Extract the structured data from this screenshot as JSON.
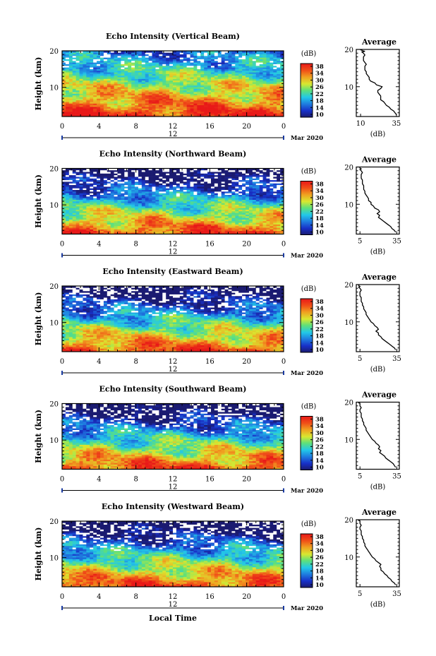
{
  "chart_data": [
    {
      "type": "heatmap",
      "title": "Echo Intensity (Vertical Beam)",
      "ylabel": "Height (km)",
      "x_ticks": [
        "0",
        "4",
        "8",
        "12",
        "16",
        "20",
        "0"
      ],
      "y_ticks": [
        "20",
        "10"
      ],
      "xlim": [
        0,
        24
      ],
      "ylim": [
        2,
        20
      ],
      "date_marker": "12",
      "date_label": "Mar 2020",
      "colorbar": {
        "unit": "(dB)",
        "ticks": [
          "38",
          "34",
          "30",
          "26",
          "22",
          "18",
          "14",
          "10"
        ],
        "range": [
          10,
          38
        ]
      },
      "average_profile": {
        "title": "Average",
        "xlabel": "(dB)",
        "x_ticks": [
          "10",
          "35"
        ],
        "y_ticks": [
          "20",
          "10"
        ],
        "xlim": [
          7,
          37
        ],
        "values": [
          35,
          34,
          33,
          31,
          30,
          28,
          27,
          26,
          24,
          24,
          24,
          23,
          22,
          22,
          24,
          25,
          21,
          20,
          17,
          16,
          16,
          15,
          14,
          14,
          13,
          13,
          13,
          14,
          13,
          12,
          12,
          12,
          13,
          12,
          11,
          13,
          11,
          11,
          10,
          10
        ],
        "heights": [
          2.5,
          3.0,
          3.5,
          4.0,
          4.5,
          5.0,
          5.5,
          6.0,
          6.5,
          7.0,
          7.5,
          8.0,
          8.5,
          9.0,
          9.5,
          10.0,
          10.5,
          11.0,
          11.5,
          12.0,
          12.5,
          13.0,
          13.5,
          14.0,
          14.5,
          15.0,
          15.5,
          16.0,
          16.5,
          17.0,
          17.5,
          18.0,
          18.5,
          19.0,
          19.3,
          19.5,
          19.7,
          19.8,
          19.9,
          20.0
        ]
      }
    },
    {
      "type": "heatmap",
      "title": "Echo Intensity (Northward Beam)",
      "ylabel": "Height (km)",
      "x_ticks": [
        "0",
        "4",
        "8",
        "12",
        "16",
        "20",
        "0"
      ],
      "y_ticks": [
        "20",
        "10"
      ],
      "xlim": [
        0,
        24
      ],
      "ylim": [
        2,
        20
      ],
      "date_marker": "12",
      "date_label": "Mar 2020",
      "colorbar": {
        "unit": "(dB)",
        "ticks": [
          "38",
          "34",
          "30",
          "26",
          "22",
          "18",
          "14",
          "10"
        ],
        "range": [
          10,
          38
        ]
      },
      "average_profile": {
        "title": "Average",
        "xlabel": "(dB)",
        "x_ticks": [
          "5",
          "35"
        ],
        "y_ticks": [
          "20",
          "10"
        ],
        "xlim": [
          2,
          37
        ],
        "values": [
          34,
          33,
          31,
          30,
          28,
          26,
          24,
          22,
          20,
          21,
          19,
          21,
          20,
          17,
          16,
          14,
          14,
          12,
          12,
          11,
          10,
          9,
          9,
          8,
          8,
          8,
          7,
          7,
          7,
          6,
          6,
          6,
          7,
          6,
          5,
          6,
          5,
          5,
          5,
          5
        ],
        "heights": [
          2.5,
          3.0,
          3.5,
          4.0,
          4.5,
          5.0,
          5.5,
          6.0,
          6.5,
          7.0,
          7.5,
          8.0,
          8.5,
          9.0,
          9.5,
          10.0,
          10.5,
          11.0,
          11.5,
          12.0,
          12.5,
          13.0,
          13.5,
          14.0,
          14.5,
          15.0,
          15.5,
          16.0,
          16.5,
          17.0,
          17.5,
          18.0,
          18.5,
          19.0,
          19.3,
          19.5,
          19.7,
          19.8,
          19.9,
          20.0
        ]
      }
    },
    {
      "type": "heatmap",
      "title": "Echo Intensity (Eastward Beam)",
      "ylabel": "Height (km)",
      "x_ticks": [
        "0",
        "4",
        "8",
        "12",
        "16",
        "20",
        "0"
      ],
      "y_ticks": [
        "20",
        "10"
      ],
      "xlim": [
        0,
        24
      ],
      "ylim": [
        2,
        20
      ],
      "date_marker": "12",
      "date_label": "Mar 2020",
      "colorbar": {
        "unit": "(dB)",
        "ticks": [
          "38",
          "34",
          "30",
          "26",
          "22",
          "18",
          "14",
          "10"
        ],
        "range": [
          10,
          38
        ]
      },
      "average_profile": {
        "title": "Average",
        "xlabel": "(dB)",
        "x_ticks": [
          "5",
          "35"
        ],
        "y_ticks": [
          "20",
          "10"
        ],
        "xlim": [
          2,
          37
        ],
        "values": [
          34,
          33,
          31,
          29,
          27,
          25,
          23,
          22,
          20,
          20,
          18,
          20,
          19,
          17,
          16,
          14,
          13,
          12,
          11,
          10,
          10,
          9,
          8,
          8,
          7,
          7,
          6,
          6,
          6,
          5,
          5,
          5,
          6,
          5,
          4,
          5,
          4,
          4,
          4,
          4
        ],
        "heights": [
          2.5,
          3.0,
          3.5,
          4.0,
          4.5,
          5.0,
          5.5,
          6.0,
          6.5,
          7.0,
          7.5,
          8.0,
          8.5,
          9.0,
          9.5,
          10.0,
          10.5,
          11.0,
          11.5,
          12.0,
          12.5,
          13.0,
          13.5,
          14.0,
          14.5,
          15.0,
          15.5,
          16.0,
          16.5,
          17.0,
          17.5,
          18.0,
          18.5,
          19.0,
          19.3,
          19.5,
          19.7,
          19.8,
          19.9,
          20.0
        ]
      }
    },
    {
      "type": "heatmap",
      "title": "Echo Intensity (Southward Beam)",
      "ylabel": "Height (km)",
      "x_ticks": [
        "0",
        "4",
        "8",
        "12",
        "16",
        "20",
        "0"
      ],
      "y_ticks": [
        "20",
        "10"
      ],
      "xlim": [
        0,
        24
      ],
      "ylim": [
        2,
        20
      ],
      "date_marker": "12",
      "date_label": "Mar 2020",
      "colorbar": {
        "unit": "(dB)",
        "ticks": [
          "38",
          "34",
          "30",
          "26",
          "22",
          "18",
          "14",
          "10"
        ],
        "range": [
          10,
          38
        ]
      },
      "average_profile": {
        "title": "Average",
        "xlabel": "(dB)",
        "x_ticks": [
          "5",
          "35"
        ],
        "y_ticks": [
          "20",
          "10"
        ],
        "xlim": [
          2,
          37
        ],
        "values": [
          34,
          33,
          32,
          30,
          28,
          26,
          25,
          23,
          21,
          22,
          20,
          21,
          20,
          18,
          17,
          15,
          14,
          13,
          12,
          11,
          10,
          10,
          9,
          8,
          8,
          7,
          7,
          6,
          6,
          6,
          5,
          5,
          6,
          5,
          5,
          5,
          5,
          4,
          4,
          4
        ],
        "heights": [
          2.5,
          3.0,
          3.5,
          4.0,
          4.5,
          5.0,
          5.5,
          6.0,
          6.5,
          7.0,
          7.5,
          8.0,
          8.5,
          9.0,
          9.5,
          10.0,
          10.5,
          11.0,
          11.5,
          12.0,
          12.5,
          13.0,
          13.5,
          14.0,
          14.5,
          15.0,
          15.5,
          16.0,
          16.5,
          17.0,
          17.5,
          18.0,
          18.5,
          19.0,
          19.3,
          19.5,
          19.7,
          19.8,
          19.9,
          20.0
        ]
      }
    },
    {
      "type": "heatmap",
      "title": "Echo Intensity (Westward Beam)",
      "ylabel": "Height (km)",
      "x_ticks": [
        "0",
        "4",
        "8",
        "12",
        "16",
        "20",
        "0"
      ],
      "y_ticks": [
        "20",
        "10"
      ],
      "xlim": [
        0,
        24
      ],
      "ylim": [
        2,
        20
      ],
      "date_marker": "12",
      "date_label": "Mar 2020",
      "colorbar": {
        "unit": "(dB)",
        "ticks": [
          "38",
          "34",
          "30",
          "26",
          "22",
          "18",
          "14",
          "10"
        ],
        "range": [
          10,
          38
        ]
      },
      "average_profile": {
        "title": "Average",
        "xlabel": "(dB)",
        "x_ticks": [
          "5",
          "35"
        ],
        "y_ticks": [
          "20",
          "10"
        ],
        "xlim": [
          2,
          37
        ],
        "values": [
          34,
          33,
          31,
          30,
          28,
          27,
          25,
          24,
          22,
          22,
          21,
          22,
          20,
          18,
          17,
          15,
          14,
          13,
          12,
          11,
          10,
          9,
          9,
          8,
          8,
          7,
          7,
          6,
          6,
          6,
          5,
          5,
          6,
          5,
          5,
          5,
          5,
          4,
          4,
          4
        ],
        "heights": [
          2.5,
          3.0,
          3.5,
          4.0,
          4.5,
          5.0,
          5.5,
          6.0,
          6.5,
          7.0,
          7.5,
          8.0,
          8.5,
          9.0,
          9.5,
          10.0,
          10.5,
          11.0,
          11.5,
          12.0,
          12.5,
          13.0,
          13.5,
          14.0,
          14.5,
          15.0,
          15.5,
          16.0,
          16.5,
          17.0,
          17.5,
          18.0,
          18.5,
          19.0,
          19.3,
          19.5,
          19.7,
          19.8,
          19.9,
          20.0
        ]
      }
    }
  ],
  "footer": {
    "xlabel": "Local Time"
  }
}
